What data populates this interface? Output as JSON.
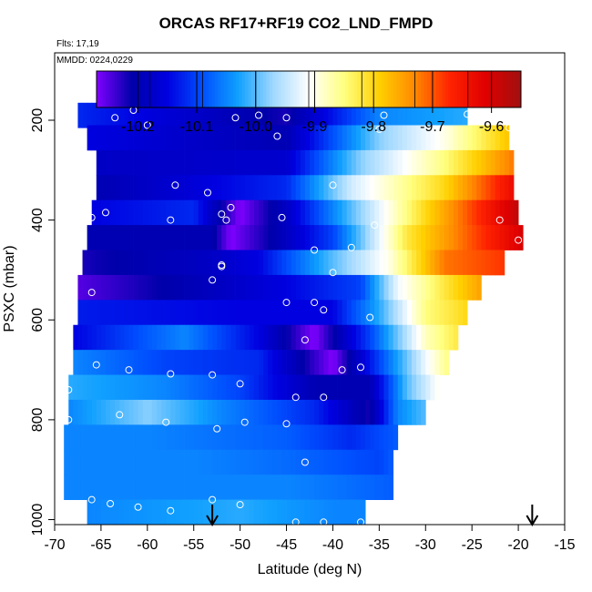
{
  "title": "ORCAS RF17+RF19 CO2_LND_FMPD",
  "flights_label": "Flts: 17,19",
  "date_label": "MMDD: 0224,0229",
  "chart_data": {
    "type": "heatmap",
    "title": "ORCAS RF17+RF19 CO2_LND_FMPD",
    "xlabel": "Latitude (deg N)",
    "ylabel": "PSXC (mbar)",
    "xlim": [
      -70,
      -15
    ],
    "ylim": [
      1010,
      65
    ],
    "y_reversed": true,
    "xticks": [
      -70,
      -65,
      -60,
      -55,
      -50,
      -45,
      -40,
      -35,
      -30,
      -25,
      -20,
      -15
    ],
    "yticks": [
      200,
      400,
      600,
      800,
      1000
    ],
    "colorbar": {
      "min": -10.27,
      "max": -9.55,
      "ticks": [
        -10.2,
        -10.1,
        -10.0,
        -9.9,
        -9.8,
        -9.7,
        -9.6
      ],
      "tick_labels": [
        "-10.2",
        "-10.1",
        "-10.0",
        "-9.9",
        "-9.8",
        "-9.7",
        "-9.6"
      ],
      "colors": [
        "#8000ff",
        "#0000aa",
        "#0000e0",
        "#0050ff",
        "#10a0ff",
        "#a0d8ff",
        "#ffffff",
        "#ffff80",
        "#ffd000",
        "#ff8800",
        "#ff2200",
        "#e00000",
        "#a01010"
      ]
    },
    "levels": [
      {
        "p": 190,
        "x0": -67.5,
        "x1": -25.5,
        "stops": [
          [
            -67.5,
            -10.12
          ],
          [
            -45,
            -10.22
          ],
          [
            -35,
            -10.05
          ],
          [
            -25.5,
            -10.02
          ]
        ]
      },
      {
        "p": 235,
        "x0": -66.5,
        "x1": -21,
        "stops": [
          [
            -66.5,
            -10.15
          ],
          [
            -45,
            -10.2
          ],
          [
            -35,
            -9.98
          ],
          [
            -28,
            -9.9
          ],
          [
            -21,
            -9.78
          ]
        ]
      },
      {
        "p": 285,
        "x0": -65.5,
        "x1": -20.5,
        "stops": [
          [
            -65.5,
            -10.18
          ],
          [
            -45,
            -10.17
          ],
          [
            -37,
            -9.98
          ],
          [
            -28,
            -9.85
          ],
          [
            -20.5,
            -9.72
          ]
        ]
      },
      {
        "p": 335,
        "x0": -65.5,
        "x1": -20.5,
        "stops": [
          [
            -65.5,
            -10.2
          ],
          [
            -45,
            -10.12
          ],
          [
            -38,
            -9.94
          ],
          [
            -28,
            -9.8
          ],
          [
            -20.5,
            -9.63
          ]
        ]
      },
      {
        "p": 385,
        "x0": -66,
        "x1": -20,
        "stops": [
          [
            -66,
            -10.15
          ],
          [
            -55,
            -10.12
          ],
          [
            -50,
            -10.27
          ],
          [
            -45,
            -10.18
          ],
          [
            -38,
            -10.0
          ],
          [
            -30,
            -9.8
          ],
          [
            -20,
            -9.58
          ]
        ]
      },
      {
        "p": 435,
        "x0": -66.5,
        "x1": -19.5,
        "stops": [
          [
            -66.5,
            -10.2
          ],
          [
            -53,
            -10.2
          ],
          [
            -51,
            -10.27
          ],
          [
            -46,
            -10.2
          ],
          [
            -40,
            -10.1
          ],
          [
            -32,
            -9.82
          ],
          [
            -19.5,
            -9.6
          ]
        ]
      },
      {
        "p": 485,
        "x0": -67,
        "x1": -21.5,
        "stops": [
          [
            -67,
            -10.22
          ],
          [
            -53,
            -10.18
          ],
          [
            -48,
            -10.15
          ],
          [
            -40,
            -10.0
          ],
          [
            -34,
            -9.9
          ],
          [
            -28,
            -9.72
          ],
          [
            -21.5,
            -9.68
          ]
        ]
      },
      {
        "p": 535,
        "x0": -67.5,
        "x1": -24,
        "stops": [
          [
            -67.5,
            -10.25
          ],
          [
            -45,
            -10.15
          ],
          [
            -37,
            -10.1
          ],
          [
            -33,
            -9.92
          ],
          [
            -28,
            -9.82
          ],
          [
            -24,
            -9.75
          ]
        ]
      },
      {
        "p": 585,
        "x0": -67.5,
        "x1": -25.5,
        "stops": [
          [
            -67.5,
            -10.13
          ],
          [
            -50,
            -10.15
          ],
          [
            -40,
            -10.15
          ],
          [
            -35,
            -10.02
          ],
          [
            -30,
            -9.85
          ],
          [
            -25.5,
            -9.8
          ]
        ]
      },
      {
        "p": 635,
        "x0": -68,
        "x1": -26.5,
        "stops": [
          [
            -68,
            -10.15
          ],
          [
            -56,
            -10.05
          ],
          [
            -48,
            -10.15
          ],
          [
            -42,
            -10.27
          ],
          [
            -36,
            -10.1
          ],
          [
            -30,
            -9.88
          ],
          [
            -26.5,
            -9.82
          ]
        ]
      },
      {
        "p": 685,
        "x0": -68,
        "x1": -27.5,
        "stops": [
          [
            -68,
            -10.05
          ],
          [
            -58,
            -10.1
          ],
          [
            -48,
            -10.12
          ],
          [
            -40,
            -10.27
          ],
          [
            -35,
            -10.1
          ],
          [
            -30,
            -9.92
          ],
          [
            -27.5,
            -9.85
          ]
        ]
      },
      {
        "p": 735,
        "x0": -68.5,
        "x1": -28.5,
        "stops": [
          [
            -68.5,
            -10.02
          ],
          [
            -58,
            -10.05
          ],
          [
            -50,
            -10.1
          ],
          [
            -42,
            -10.2
          ],
          [
            -36,
            -10.2
          ],
          [
            -32,
            -10.0
          ],
          [
            -28.5,
            -9.9
          ]
        ]
      },
      {
        "p": 785,
        "x0": -68.5,
        "x1": -30,
        "stops": [
          [
            -68.5,
            -10.05
          ],
          [
            -60,
            -9.98
          ],
          [
            -52,
            -10.05
          ],
          [
            -42,
            -10.12
          ],
          [
            -36,
            -10.22
          ],
          [
            -33,
            -10.05
          ],
          [
            -30,
            -10.0
          ]
        ]
      },
      {
        "p": 835,
        "x0": -69,
        "x1": -33,
        "stops": [
          [
            -69,
            -10.05
          ],
          [
            -60,
            -10.05
          ],
          [
            -45,
            -10.08
          ],
          [
            -38,
            -10.12
          ],
          [
            -33,
            -10.08
          ]
        ]
      },
      {
        "p": 885,
        "x0": -69,
        "x1": -33.5,
        "stops": [
          [
            -69,
            -10.05
          ],
          [
            -55,
            -10.05
          ],
          [
            -45,
            -10.07
          ],
          [
            -35,
            -10.1
          ],
          [
            -33.5,
            -10.08
          ]
        ]
      },
      {
        "p": 935,
        "x0": -69,
        "x1": -33.5,
        "stops": [
          [
            -69,
            -10.05
          ],
          [
            -55,
            -10.05
          ],
          [
            -45,
            -10.05
          ],
          [
            -33.5,
            -10.08
          ]
        ]
      },
      {
        "p": 985,
        "x0": -66.5,
        "x1": -36.5,
        "stops": [
          [
            -66.5,
            -10.05
          ],
          [
            -50,
            -10.02
          ],
          [
            -40,
            -10.05
          ],
          [
            -36.5,
            -10.05
          ]
        ]
      }
    ],
    "points": [
      [
        -61.5,
        180
      ],
      [
        -63.5,
        195
      ],
      [
        -50.5,
        195
      ],
      [
        -48,
        190
      ],
      [
        -45,
        195
      ],
      [
        -34.5,
        190
      ],
      [
        -25.5,
        188
      ],
      [
        -60,
        210
      ],
      [
        -46,
        232
      ],
      [
        -35,
        218
      ],
      [
        -21,
        215
      ],
      [
        -66,
        330
      ],
      [
        -57,
        330
      ],
      [
        -53.5,
        345
      ],
      [
        -40,
        330
      ],
      [
        -64.5,
        385
      ],
      [
        -66,
        395
      ],
      [
        -57.5,
        400
      ],
      [
        -52,
        388
      ],
      [
        -51,
        375
      ],
      [
        -45.5,
        395
      ],
      [
        -35.5,
        410
      ],
      [
        -22,
        400
      ],
      [
        -20,
        440
      ],
      [
        -52,
        490
      ],
      [
        -52,
        493
      ],
      [
        -51.5,
        400
      ],
      [
        -42,
        460
      ],
      [
        -38,
        455
      ],
      [
        -40,
        505
      ],
      [
        -53,
        520
      ],
      [
        -66,
        545
      ],
      [
        -45,
        565
      ],
      [
        -42,
        565
      ],
      [
        -41,
        580
      ],
      [
        -36,
        595
      ],
      [
        -43,
        640
      ],
      [
        -65.5,
        690
      ],
      [
        -62,
        700
      ],
      [
        -57.5,
        708
      ],
      [
        -53,
        710
      ],
      [
        -39,
        700
      ],
      [
        -37,
        695
      ],
      [
        -50,
        728
      ],
      [
        -68.5,
        740
      ],
      [
        -44,
        755
      ],
      [
        -41,
        755
      ],
      [
        -68.5,
        800
      ],
      [
        -63,
        790
      ],
      [
        -58,
        805
      ],
      [
        -52.5,
        818
      ],
      [
        -49.5,
        805
      ],
      [
        -45,
        808
      ],
      [
        -43,
        885
      ],
      [
        -66,
        960
      ],
      [
        -64,
        968
      ],
      [
        -61,
        975
      ],
      [
        -57.5,
        982
      ],
      [
        -53,
        960
      ],
      [
        -50,
        970
      ],
      [
        -44,
        1005
      ],
      [
        -41,
        1005
      ],
      [
        -37,
        1005
      ]
    ],
    "arrows": [
      -53,
      -18.5
    ]
  }
}
